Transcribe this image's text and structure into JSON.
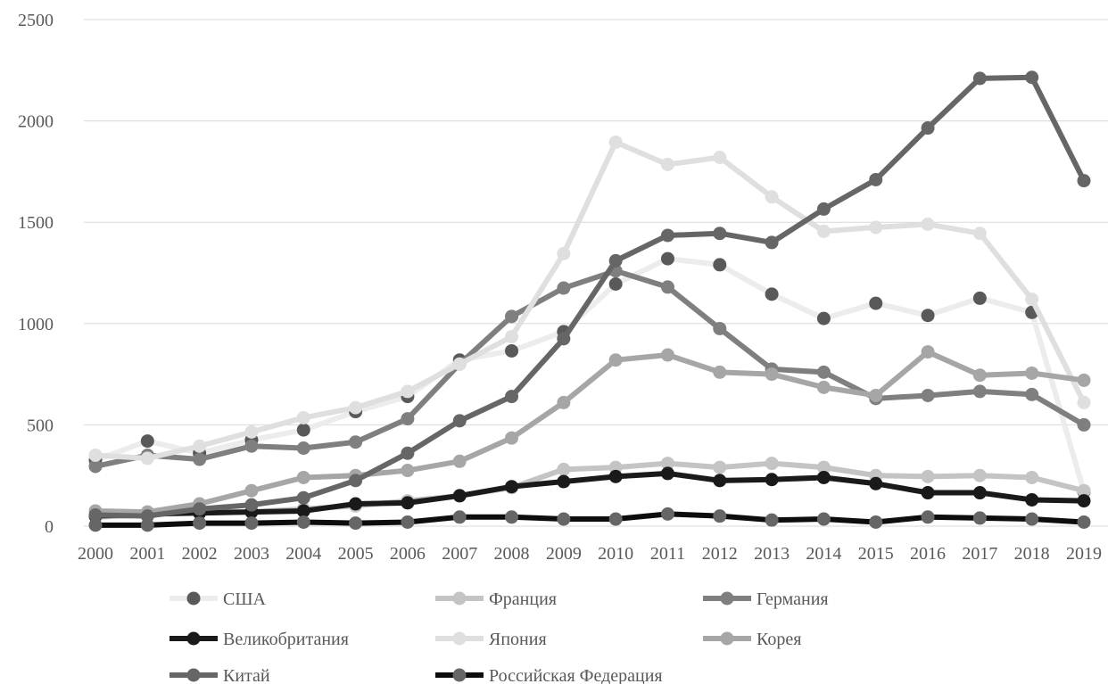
{
  "chart_data": {
    "type": "line",
    "title": "",
    "xlabel": "",
    "ylabel": "",
    "ylim": [
      0,
      2500
    ],
    "yticks": [
      0,
      500,
      1000,
      1500,
      2000,
      2500
    ],
    "grid": "horizontal",
    "legend_position": "bottom",
    "x": [
      "2000",
      "2001",
      "2002",
      "2003",
      "2004",
      "2005",
      "2006",
      "2007",
      "2008",
      "2009",
      "2010",
      "2011",
      "2012",
      "2013",
      "2014",
      "2015",
      "2016",
      "2017",
      "2018",
      "2019"
    ],
    "series": [
      {
        "name": "США",
        "color": "#ececec",
        "marker": "#595959",
        "values": [
          325,
          420,
          360,
          425,
          475,
          565,
          640,
          820,
          865,
          960,
          1195,
          1320,
          1290,
          1145,
          1025,
          1100,
          1040,
          1125,
          1055,
          170
        ]
      },
      {
        "name": "Франция",
        "color": "#c4c4c4",
        "marker": "#c4c4c4",
        "values": [
          45,
          55,
          70,
          70,
          85,
          100,
          125,
          150,
          190,
          280,
          290,
          310,
          290,
          310,
          290,
          250,
          245,
          250,
          240,
          175
        ]
      },
      {
        "name": "Германия",
        "color": "#7f7f7f",
        "marker": "#7f7f7f",
        "values": [
          295,
          350,
          330,
          395,
          385,
          415,
          530,
          800,
          1035,
          1175,
          1260,
          1180,
          975,
          775,
          760,
          630,
          645,
          665,
          650,
          500
        ]
      },
      {
        "name": "Великобритания",
        "color": "#1a1a1a",
        "marker": "#1a1a1a",
        "values": [
          50,
          60,
          65,
          70,
          75,
          110,
          115,
          150,
          195,
          220,
          245,
          260,
          225,
          230,
          240,
          210,
          165,
          165,
          130,
          125
        ]
      },
      {
        "name": "Япония",
        "color": "#dfdfdf",
        "marker": "#dfdfdf",
        "values": [
          350,
          335,
          395,
          465,
          535,
          585,
          665,
          800,
          935,
          1345,
          1895,
          1785,
          1820,
          1625,
          1455,
          1475,
          1490,
          1445,
          1120,
          610
        ]
      },
      {
        "name": "Корея",
        "color": "#a6a6a6",
        "marker": "#a6a6a6",
        "values": [
          75,
          70,
          110,
          175,
          240,
          250,
          275,
          320,
          435,
          610,
          820,
          845,
          760,
          750,
          685,
          645,
          860,
          745,
          755,
          720
        ]
      },
      {
        "name": "Китай",
        "color": "#666666",
        "marker": "#666666",
        "values": [
          55,
          50,
          85,
          105,
          140,
          225,
          360,
          520,
          640,
          925,
          1310,
          1435,
          1445,
          1400,
          1565,
          1710,
          1965,
          2210,
          2215,
          1705
        ]
      },
      {
        "name": "Российская Федерация",
        "color": "#0d0d0d",
        "marker": "#666666",
        "values": [
          5,
          5,
          15,
          15,
          20,
          15,
          20,
          45,
          45,
          35,
          35,
          60,
          50,
          30,
          35,
          20,
          45,
          40,
          35,
          20
        ]
      }
    ]
  }
}
